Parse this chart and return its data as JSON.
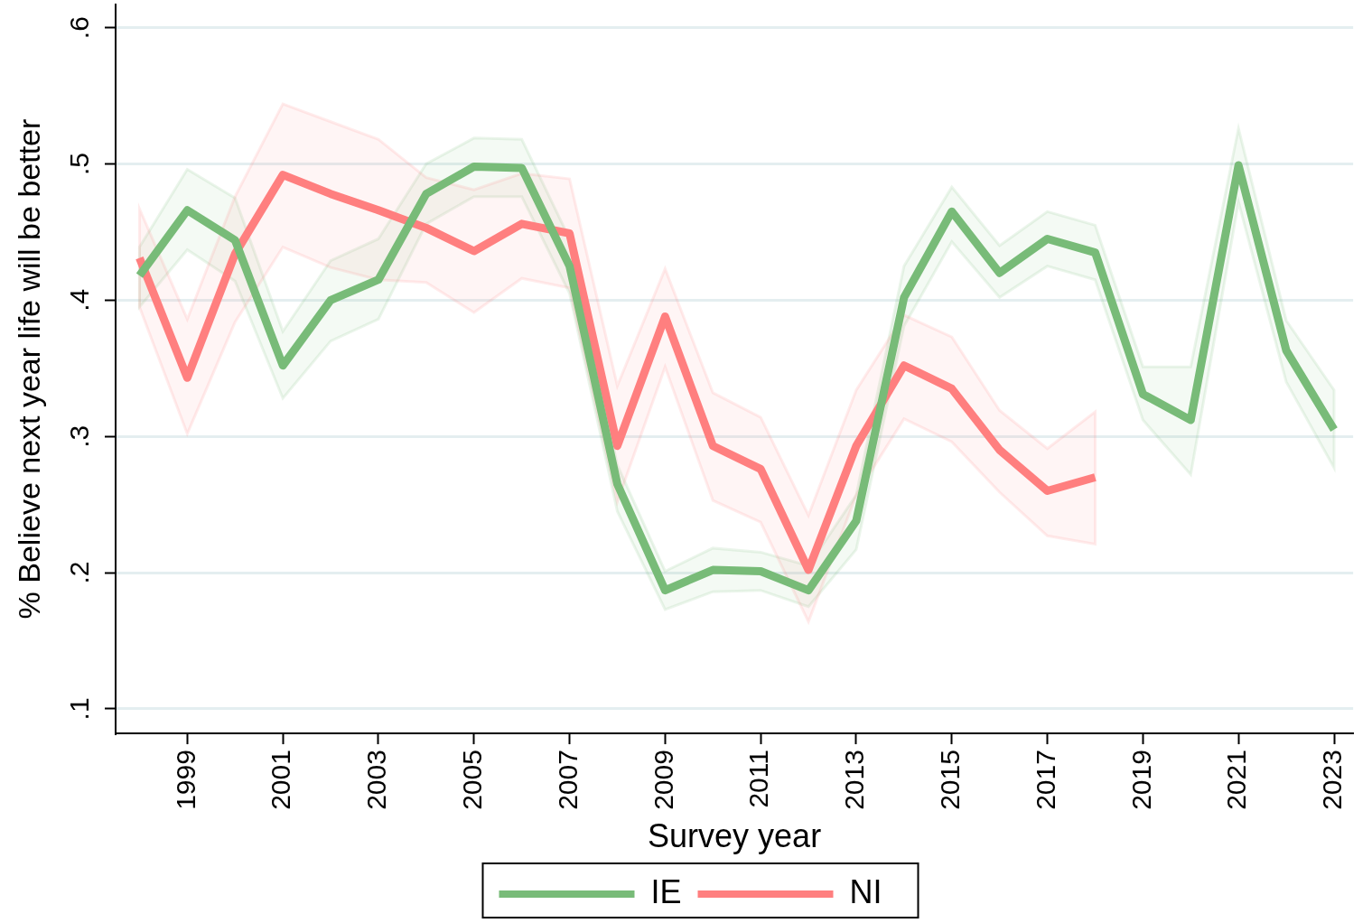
{
  "chart_data": {
    "type": "line",
    "xlabel": "Survey year",
    "ylabel": "% Believe next year life will be better",
    "x": [
      1998,
      1999,
      2000,
      2001,
      2002,
      2003,
      2004,
      2005,
      2006,
      2007,
      2008,
      2009,
      2010,
      2011,
      2012,
      2013,
      2014,
      2015,
      2016,
      2017,
      2018,
      2019,
      2020,
      2021,
      2022,
      2023
    ],
    "series": [
      {
        "name": "IE",
        "color": "#78bb78",
        "values": [
          0.418,
          0.466,
          0.444,
          0.352,
          0.4,
          0.415,
          0.478,
          0.498,
          0.497,
          0.425,
          0.265,
          0.187,
          0.202,
          0.201,
          0.187,
          0.238,
          0.402,
          0.465,
          0.42,
          0.445,
          0.435,
          0.331,
          0.312,
          0.499,
          0.363,
          0.305
        ],
        "lower": [
          0.395,
          0.437,
          0.414,
          0.328,
          0.37,
          0.386,
          0.456,
          0.476,
          0.476,
          0.405,
          0.245,
          0.173,
          0.186,
          0.187,
          0.175,
          0.217,
          0.381,
          0.443,
          0.402,
          0.425,
          0.415,
          0.312,
          0.272,
          0.472,
          0.34,
          0.277
        ],
        "upper": [
          0.439,
          0.496,
          0.475,
          0.377,
          0.429,
          0.445,
          0.5,
          0.519,
          0.518,
          0.445,
          0.279,
          0.201,
          0.218,
          0.215,
          0.205,
          0.257,
          0.425,
          0.483,
          0.44,
          0.465,
          0.455,
          0.351,
          0.351,
          0.526,
          0.385,
          0.334
        ]
      },
      {
        "name": "NI",
        "color": "#ff7f7f",
        "values": [
          0.431,
          0.343,
          0.434,
          0.492,
          0.478,
          0.466,
          0.453,
          0.436,
          0.456,
          0.449,
          0.293,
          0.388,
          0.293,
          0.276,
          0.202,
          0.293,
          0.352,
          0.335,
          0.29,
          0.26,
          0.27,
          null,
          null,
          null,
          null,
          null
        ],
        "lower": [
          0.395,
          0.302,
          0.384,
          0.439,
          0.424,
          0.415,
          0.413,
          0.391,
          0.416,
          0.409,
          0.252,
          0.351,
          0.253,
          0.237,
          0.164,
          0.257,
          0.313,
          0.296,
          0.259,
          0.227,
          0.221,
          null,
          null,
          null,
          null,
          null
        ],
        "upper": [
          0.467,
          0.386,
          0.476,
          0.544,
          0.531,
          0.518,
          0.49,
          0.481,
          0.493,
          0.489,
          0.337,
          0.423,
          0.332,
          0.314,
          0.242,
          0.334,
          0.389,
          0.373,
          0.319,
          0.291,
          0.318,
          null,
          null,
          null,
          null,
          null
        ]
      }
    ],
    "xlim": [
      1997.5,
      2023.4
    ],
    "xticks": [
      1999,
      2001,
      2003,
      2005,
      2007,
      2009,
      2011,
      2013,
      2015,
      2017,
      2019,
      2021,
      2023
    ],
    "ylim": [
      0.082,
      0.617
    ],
    "yticks": [
      {
        "value": 0.1,
        "label": ".1"
      },
      {
        "value": 0.2,
        "label": ".2"
      },
      {
        "value": 0.3,
        "label": ".3"
      },
      {
        "value": 0.4,
        "label": ".4"
      },
      {
        "value": 0.5,
        "label": ".5"
      },
      {
        "value": 0.6,
        "label": ".6"
      }
    ],
    "grid": "y",
    "legend": "bottom",
    "marker": "none",
    "line_style": "solid"
  }
}
